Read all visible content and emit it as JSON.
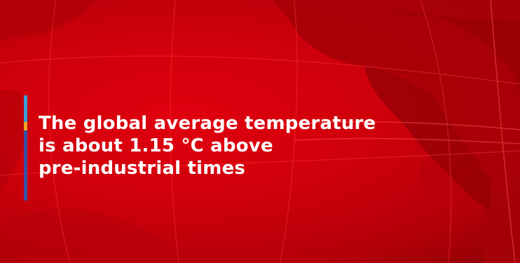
{
  "caption": {
    "lines": [
      "The global average temperature",
      "is about 1.15 °C above",
      "pre-industrial times"
    ]
  },
  "colors": {
    "background": "#cf000b",
    "land": "#a00008",
    "text": "#ffffff",
    "accent_bar": [
      "#3a9fd6",
      "#f0a020",
      "#3a4fa8"
    ]
  },
  "graphics": {
    "background": "globe-map-graphic",
    "accent": "multicolor-accent-bar"
  }
}
